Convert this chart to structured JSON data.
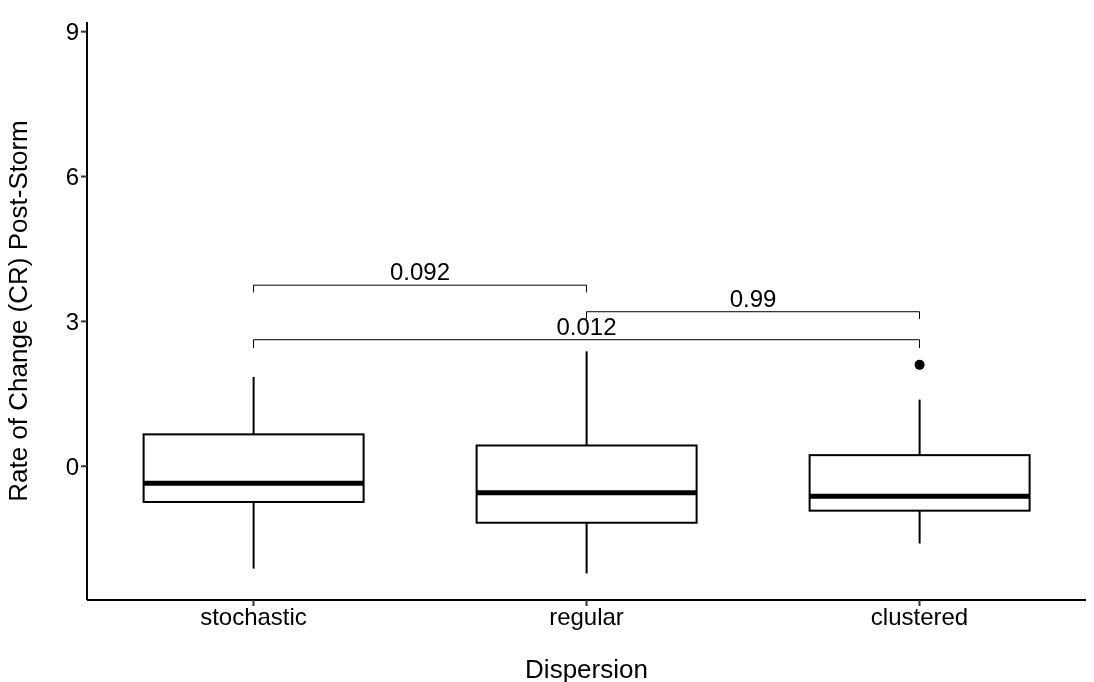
{
  "chart_data": {
    "type": "box",
    "xlabel": "Dispersion",
    "ylabel": "Rate of Change (CR) Post-Storm",
    "categories": [
      "stochastic",
      "regular",
      "clustered"
    ],
    "boxes": [
      {
        "low": -2.12,
        "q1": -0.74,
        "median": -0.35,
        "q3": 0.66,
        "high": 1.85
      },
      {
        "low": -2.22,
        "q1": -1.17,
        "median": -0.55,
        "q3": 0.43,
        "high": 2.38
      },
      {
        "low": -1.6,
        "q1": -0.92,
        "median": -0.62,
        "q3": 0.23,
        "high": 1.38,
        "outliers": [
          2.1
        ]
      }
    ],
    "ylim": [
      -2.77,
      9.2
    ],
    "yticks": [
      0,
      3,
      6,
      9
    ],
    "grid": false,
    "annotations": [
      "0.092",
      "0.99",
      "0.012"
    ]
  }
}
